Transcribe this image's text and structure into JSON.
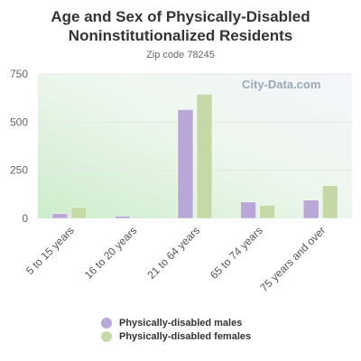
{
  "title": "Age and Sex of Physically-Disabled Noninstitutionalized Residents",
  "subtitle": "Zip code 78245",
  "watermark": "City-Data.com",
  "colors": {
    "males": "#b9a7d8",
    "females": "#c4d9a6"
  },
  "chart_data": {
    "type": "bar",
    "categories": [
      "5 to 15 years",
      "16 to 20 years",
      "21 to 64 years",
      "65 to 74 years",
      "75 years and over"
    ],
    "series": [
      {
        "name": "Physically-disabled males",
        "values": [
          25,
          12,
          565,
          85,
          95
        ]
      },
      {
        "name": "Physically-disabled females",
        "values": [
          58,
          0,
          645,
          68,
          170
        ]
      }
    ],
    "ylim": [
      0,
      750
    ],
    "yticks": [
      0,
      250,
      500,
      750
    ],
    "grid": true,
    "legend": "bottom"
  }
}
